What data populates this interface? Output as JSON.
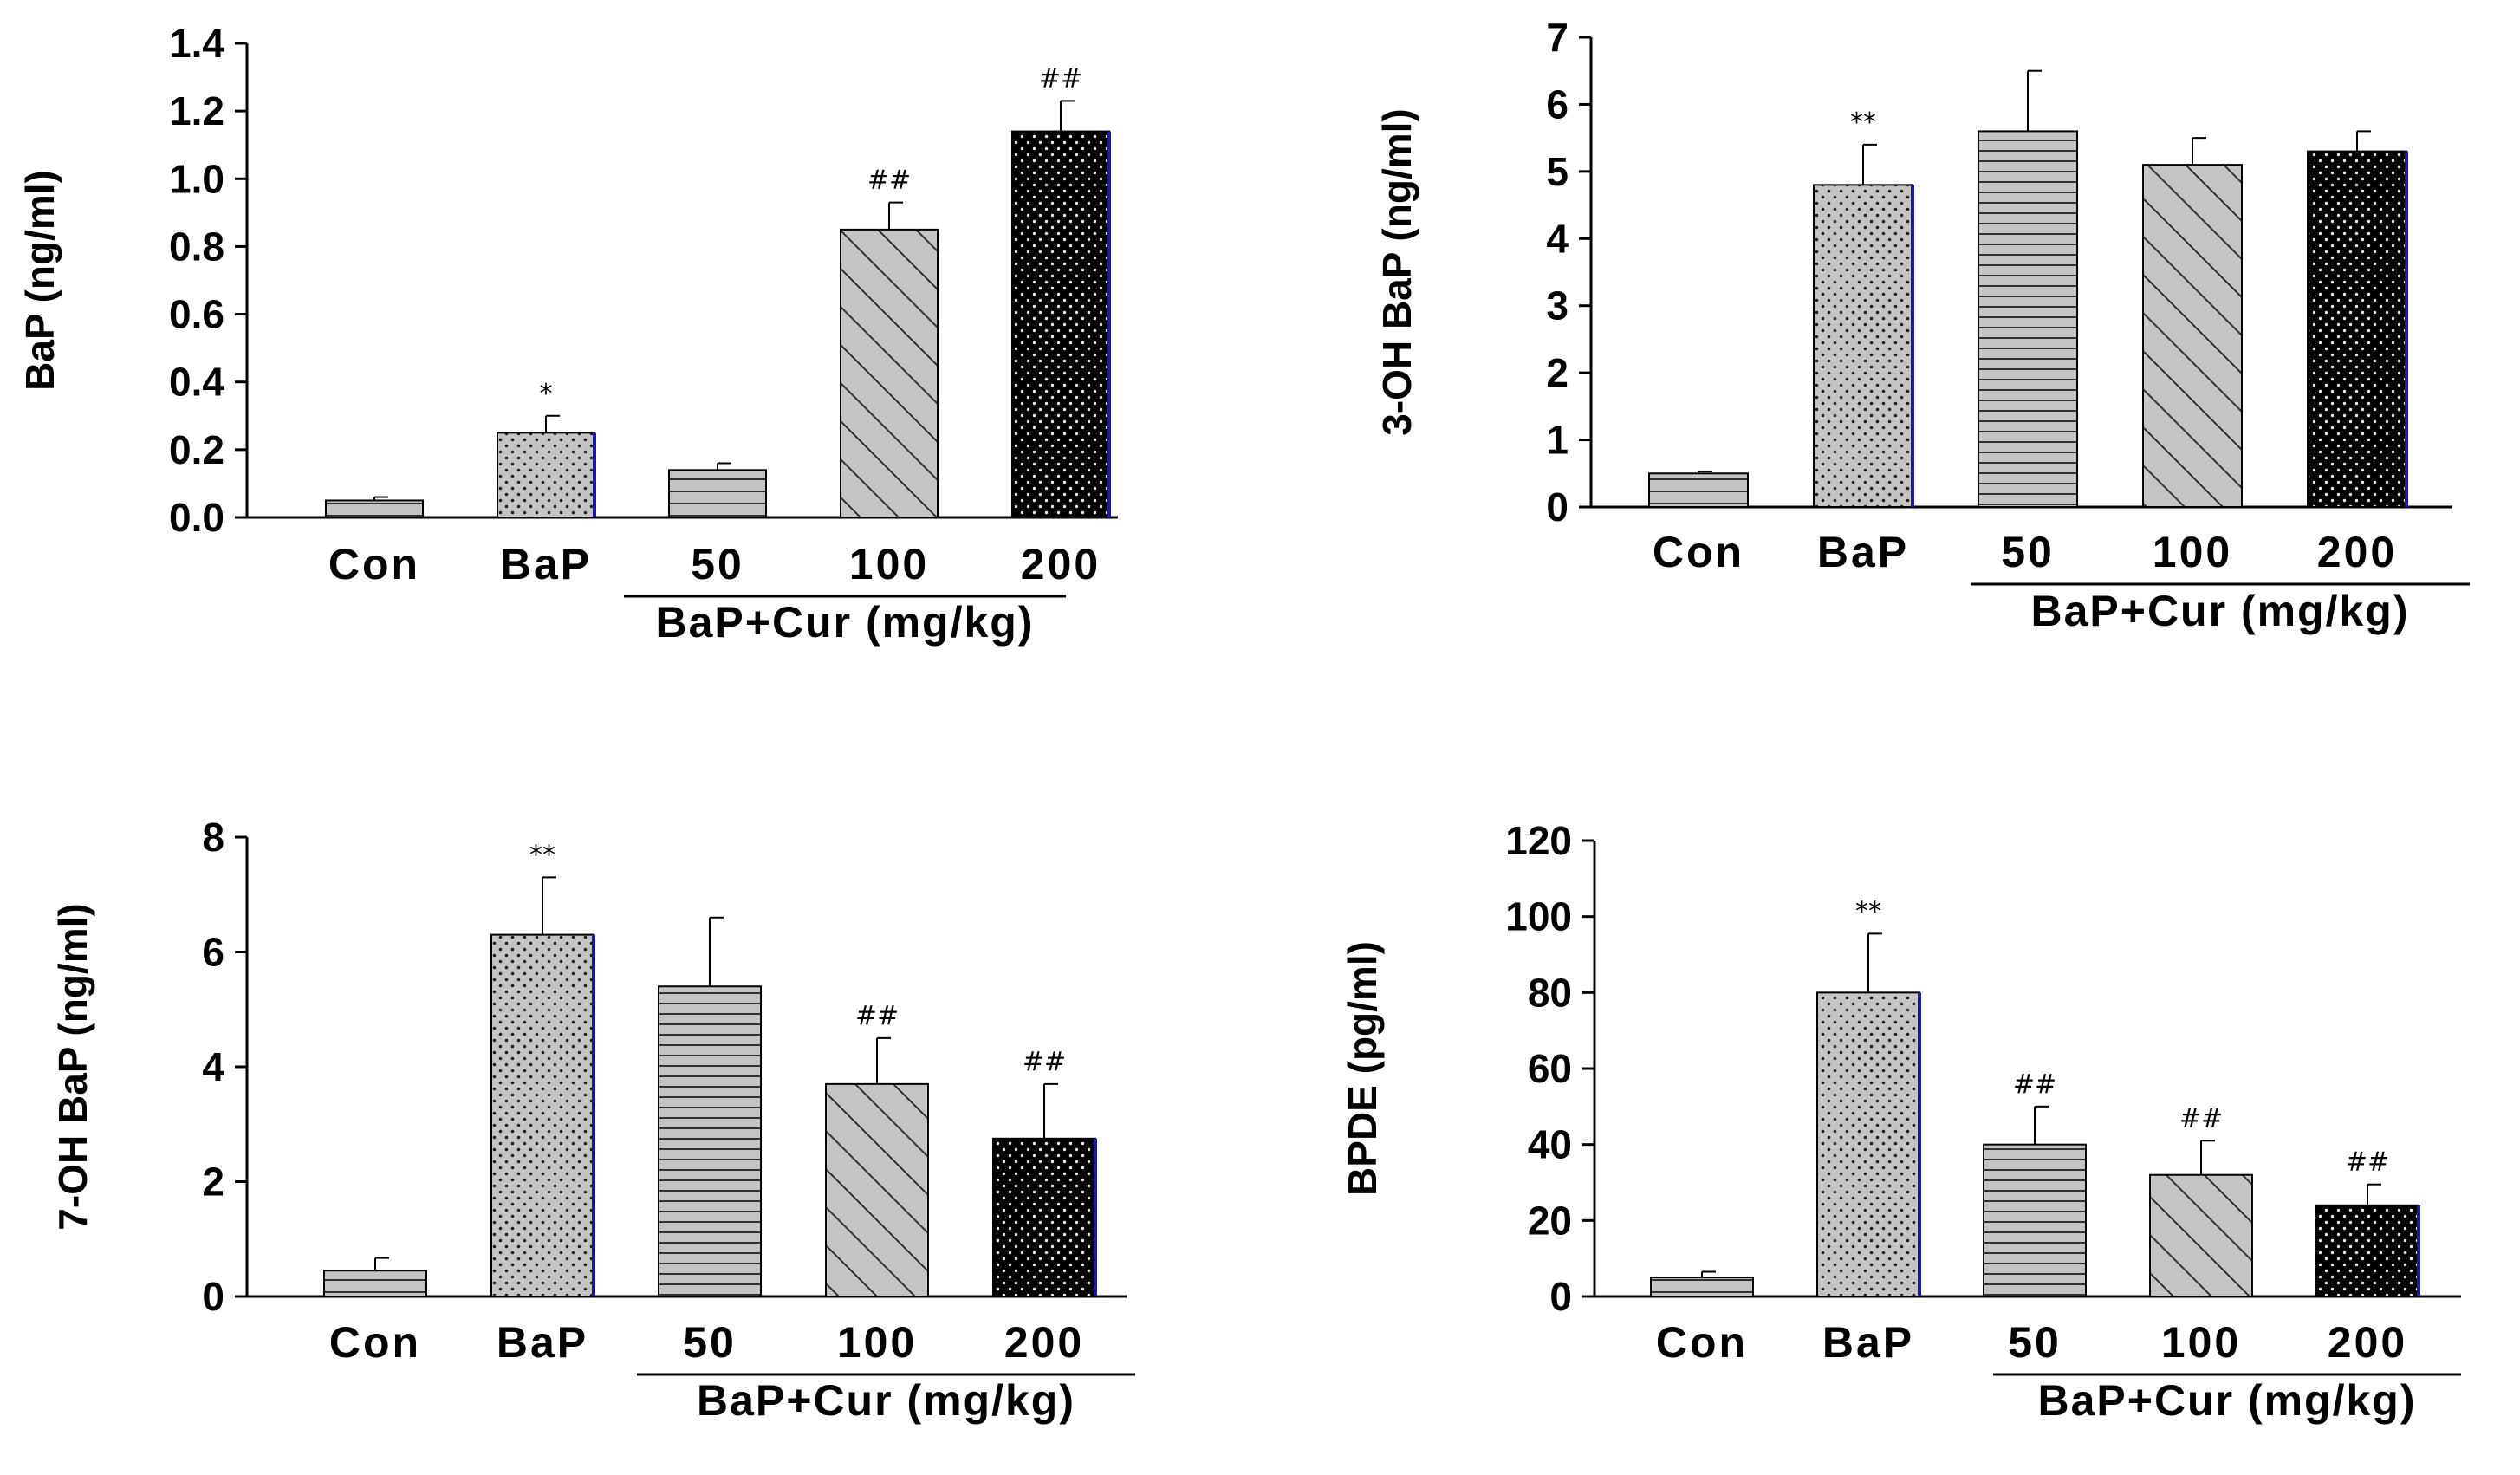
{
  "colors": {
    "bar_gray": "#c4c4c4",
    "bar_black": "#000000",
    "edge_blue": "#1a1aa0",
    "axis": "#000000"
  },
  "chart_data": [
    {
      "type": "bar",
      "panel": "top-left",
      "ylabel": "BaP (ng/ml)",
      "categories": [
        "Con",
        "BaP",
        "50",
        "100",
        "200"
      ],
      "group_label": "BaP+Cur (mg/kg)",
      "values": [
        0.05,
        0.25,
        0.14,
        0.85,
        1.14
      ],
      "errors": [
        0.01,
        0.05,
        0.02,
        0.08,
        0.09
      ],
      "significance": [
        "",
        "*",
        "",
        "##",
        "##"
      ],
      "patterns": [
        "hlines-sparse",
        "dots",
        "hlines-sparse",
        "diagonal",
        "dots-on-black"
      ],
      "ylim": [
        0,
        1.4
      ],
      "yticks": [
        0.0,
        0.2,
        0.4,
        0.6,
        0.8,
        1.0,
        1.2,
        1.4
      ],
      "ytick_labels": [
        "0.0",
        "0.2",
        "0.4",
        "0.6",
        "0.8",
        "1.0",
        "1.2",
        "1.4"
      ]
    },
    {
      "type": "bar",
      "panel": "top-right",
      "ylabel": "3-OH BaP (ng/ml)",
      "categories": [
        "Con",
        "BaP",
        "50",
        "100",
        "200"
      ],
      "group_label": "BaP+Cur (mg/kg)",
      "values": [
        0.5,
        4.8,
        5.6,
        5.1,
        5.3
      ],
      "errors": [
        0.03,
        0.6,
        0.9,
        0.4,
        0.3
      ],
      "significance": [
        "",
        "**",
        "",
        "",
        ""
      ],
      "patterns": [
        "hlines-sparse",
        "dots",
        "hlines-dense",
        "diagonal",
        "dots-on-black"
      ],
      "ylim": [
        0,
        7
      ],
      "yticks": [
        0,
        1,
        2,
        3,
        4,
        5,
        6,
        7
      ],
      "ytick_labels": [
        "0",
        "1",
        "2",
        "3",
        "4",
        "5",
        "6",
        "7"
      ]
    },
    {
      "type": "bar",
      "panel": "bottom-left",
      "ylabel": "7-OH BaP (ng/ml)",
      "categories": [
        "Con",
        "BaP",
        "50",
        "100",
        "200"
      ],
      "group_label": "BaP+Cur (mg/kg)",
      "values": [
        0.45,
        6.3,
        5.4,
        3.7,
        2.75
      ],
      "errors": [
        0.22,
        1.0,
        1.2,
        0.8,
        0.95
      ],
      "significance": [
        "",
        "**",
        "",
        "##",
        "##"
      ],
      "patterns": [
        "hlines-sparse",
        "dots",
        "hlines-dense",
        "diagonal",
        "dots-on-black"
      ],
      "ylim": [
        0,
        8
      ],
      "yticks": [
        0,
        2,
        4,
        6,
        8
      ],
      "ytick_labels": [
        "0",
        "2",
        "4",
        "6",
        "8"
      ]
    },
    {
      "type": "bar",
      "panel": "bottom-right",
      "ylabel": "BPDE (pg/ml)",
      "categories": [
        "Con",
        "BaP",
        "50",
        "100",
        "200"
      ],
      "group_label": "BaP+Cur (mg/kg)",
      "values": [
        5,
        80,
        40,
        32,
        24
      ],
      "errors": [
        1.5,
        15.5,
        10,
        9,
        5.5
      ],
      "significance": [
        "",
        "**",
        "##",
        "##",
        "##"
      ],
      "patterns": [
        "hlines-sparse",
        "dots",
        "hlines-dense",
        "diagonal",
        "dots-on-black"
      ],
      "ylim": [
        0,
        120
      ],
      "yticks": [
        0,
        20,
        40,
        60,
        80,
        100,
        120
      ],
      "ytick_labels": [
        "0",
        "20",
        "40",
        "60",
        "80",
        "100",
        "120"
      ]
    }
  ]
}
